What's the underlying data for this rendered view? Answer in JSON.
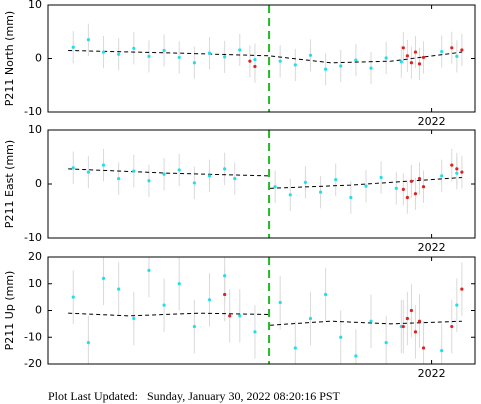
{
  "chart_data": [
    {
      "type": "scatter",
      "ylabel": "P211 North (mm)",
      "xlim": [
        2018.2,
        2022.43
      ],
      "xticks": [
        2022
      ],
      "ylim": [
        -10,
        10
      ],
      "yticks": [
        -10,
        0,
        10
      ],
      "grid": false,
      "event": {
        "x": 2020.39,
        "color": "#22bb22"
      },
      "series": [
        {
          "color": "#22ddee",
          "error": 3,
          "x": [
            2018.45,
            2018.6,
            2018.75,
            2018.9,
            2019.05,
            2019.2,
            2019.35,
            2019.5,
            2019.65,
            2019.8,
            2019.95,
            2020.1,
            2020.25,
            2020.5,
            2020.65,
            2020.8,
            2020.95,
            2021.1,
            2021.25,
            2021.4,
            2021.55,
            2021.7,
            2022.1,
            2022.25
          ],
          "values": [
            2.1,
            3.5,
            1.2,
            0.8,
            1.9,
            0.4,
            1.5,
            0.2,
            -0.8,
            1.0,
            0.3,
            1.6,
            -0.2,
            -0.5,
            -1.2,
            0.6,
            -2.0,
            -1.4,
            -0.3,
            -1.8,
            0.1,
            -0.6,
            1.3,
            0.4
          ]
        },
        {
          "color": "#dd2222",
          "error": 3,
          "x": [
            2020.2,
            2020.25,
            2021.72,
            2021.76,
            2021.8,
            2021.84,
            2021.88,
            2021.92,
            2022.2,
            2022.3
          ],
          "values": [
            -0.5,
            -1.5,
            2.0,
            0.5,
            -0.8,
            1.2,
            -1.0,
            0.2,
            2.0,
            1.6
          ]
        }
      ],
      "model": {
        "color": "#000000",
        "x": [
          2018.4,
          2019.5,
          2020.39,
          2021.0,
          2021.6,
          2022.3
        ],
        "values": [
          1.5,
          1.0,
          0.5,
          -0.8,
          -0.5,
          1.2
        ]
      }
    },
    {
      "type": "scatter",
      "ylabel": "P211 East (mm)",
      "xlim": [
        2018.2,
        2022.43
      ],
      "xticks": [
        2022
      ],
      "ylim": [
        -10,
        10
      ],
      "yticks": [
        -10,
        0,
        10
      ],
      "grid": false,
      "event": {
        "x": 2020.39,
        "color": "#22bb22"
      },
      "series": [
        {
          "color": "#22ddee",
          "error": 3,
          "x": [
            2018.45,
            2018.6,
            2018.75,
            2018.9,
            2019.05,
            2019.2,
            2019.35,
            2019.5,
            2019.65,
            2019.8,
            2019.95,
            2020.05,
            2020.45,
            2020.6,
            2020.75,
            2020.9,
            2021.05,
            2021.2,
            2021.35,
            2021.5,
            2021.65,
            2021.8,
            2022.1,
            2022.25
          ],
          "values": [
            3.0,
            2.2,
            3.5,
            1.0,
            2.4,
            0.6,
            1.8,
            2.6,
            0.2,
            1.5,
            2.8,
            1.0,
            -0.5,
            -2.0,
            0.3,
            -1.5,
            0.8,
            -2.5,
            -0.4,
            1.2,
            -0.8,
            0.5,
            1.5,
            2.0
          ]
        },
        {
          "color": "#dd2222",
          "error": 3,
          "x": [
            2021.72,
            2021.76,
            2021.8,
            2021.84,
            2021.88,
            2021.92,
            2022.2,
            2022.25,
            2022.3
          ],
          "values": [
            -1.0,
            -2.5,
            0.5,
            -1.8,
            1.0,
            -0.5,
            3.5,
            2.8,
            2.2
          ]
        }
      ],
      "model": {
        "color": "#000000",
        "x": [
          2018.4,
          2019.4,
          2020.39,
          null,
          2020.4,
          2021.2,
          2022.3
        ],
        "values": [
          2.8,
          2.0,
          1.5,
          null,
          -0.8,
          -0.2,
          1.2
        ]
      }
    },
    {
      "type": "scatter",
      "ylabel": "P211 Up (mm)",
      "xlim": [
        2018.2,
        2022.43
      ],
      "xticks": [
        2022
      ],
      "ylim": [
        -20,
        20
      ],
      "yticks": [
        -20,
        -10,
        0,
        10,
        20
      ],
      "grid": false,
      "event": {
        "x": 2020.39,
        "color": "#22bb22"
      },
      "series": [
        {
          "color": "#22ddee",
          "error": 10,
          "x": [
            2018.45,
            2018.6,
            2018.75,
            2018.9,
            2019.05,
            2019.2,
            2019.35,
            2019.5,
            2019.65,
            2019.8,
            2019.95,
            2020.1,
            2020.25,
            2020.5,
            2020.65,
            2020.8,
            2020.95,
            2021.1,
            2021.25,
            2021.4,
            2021.55,
            2021.7,
            2022.1,
            2022.25
          ],
          "values": [
            5,
            -12,
            12,
            8,
            -3,
            15,
            2,
            10,
            -6,
            4,
            13,
            -2,
            -8,
            3,
            -14,
            -3,
            6,
            -10,
            -17,
            -4,
            -12,
            -6,
            -15,
            2
          ]
        },
        {
          "color": "#dd2222",
          "error": 10,
          "x": [
            2019.95,
            2020.0,
            2021.72,
            2021.76,
            2021.8,
            2021.84,
            2021.88,
            2021.92,
            2022.2,
            2022.3
          ],
          "values": [
            6,
            -2,
            -6,
            -3,
            0,
            -8,
            -4,
            -14,
            -6,
            8
          ]
        }
      ],
      "model": {
        "color": "#000000",
        "x": [
          2018.4,
          2019.0,
          2019.7,
          2020.39,
          null,
          2020.4,
          2021.0,
          2021.6,
          2022.3
        ],
        "values": [
          -1,
          -2,
          -1,
          -1.5,
          null,
          -5.5,
          -4,
          -5,
          -4
        ]
      }
    }
  ],
  "footer": "Plot Last Updated:   Sunday, January 30, 2022 08:20:16 PST"
}
